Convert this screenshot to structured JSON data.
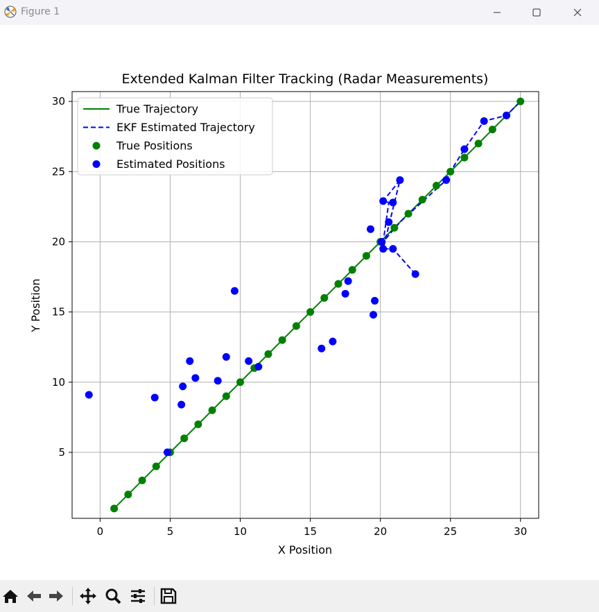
{
  "window": {
    "title": "Figure 1",
    "icons": [
      "matplotlib-logo-icon",
      "minimize-icon",
      "maximize-icon",
      "close-icon"
    ]
  },
  "toolbar": {
    "buttons": [
      "home-icon",
      "back-icon",
      "forward-icon",
      "pan-icon",
      "zoom-icon",
      "configure-subplots-icon",
      "save-icon"
    ]
  },
  "chart_data": {
    "type": "line",
    "title": "Extended Kalman Filter Tracking (Radar Measurements)",
    "xlabel": "X Position",
    "ylabel": "Y Position",
    "xlim": [
      -2,
      31.3
    ],
    "ylim": [
      0.3,
      30.7
    ],
    "xticks": [
      0,
      5,
      10,
      15,
      20,
      25,
      30
    ],
    "yticks": [
      5,
      10,
      15,
      20,
      25,
      30
    ],
    "grid": true,
    "legend_position": "upper-left",
    "colors": {
      "true": "#008000",
      "estimated": "#0000ff"
    },
    "series": [
      {
        "name": "True Trajectory",
        "style": "solid-line",
        "color": "#008000",
        "x": [
          1,
          2,
          3,
          4,
          5,
          6,
          7,
          8,
          9,
          10,
          11,
          12,
          13,
          14,
          15,
          16,
          17,
          18,
          19,
          20,
          21,
          22,
          23,
          24,
          25,
          26,
          27,
          28,
          29,
          30
        ],
        "y": [
          1,
          2,
          3,
          4,
          5,
          6,
          7,
          8,
          9,
          10,
          11,
          12,
          13,
          14,
          15,
          16,
          17,
          18,
          19,
          20,
          21,
          22,
          23,
          24,
          25,
          26,
          27,
          28,
          29,
          30
        ]
      },
      {
        "name": "EKF Estimated Trajectory",
        "style": "dashed-line",
        "color": "#0000ff",
        "x": [
          22.5,
          20.9,
          20.2,
          21.4,
          20.2,
          20.6,
          20.2,
          21.4,
          24.7,
          25,
          26,
          27.4,
          29,
          30
        ],
        "y": [
          17.7,
          19.5,
          19.5,
          24.4,
          22.9,
          22.8,
          20,
          21.4,
          24.4,
          25,
          26.6,
          28.6,
          29,
          30
        ]
      },
      {
        "name": "True Positions",
        "style": "markers",
        "color": "#008000",
        "x": [
          1,
          2,
          3,
          4,
          5,
          6,
          7,
          8,
          9,
          10,
          11,
          12,
          13,
          14,
          15,
          16,
          17,
          18,
          19,
          20,
          21,
          22,
          23,
          24,
          25,
          26,
          27,
          28,
          29,
          30
        ],
        "y": [
          1,
          2,
          3,
          4,
          5,
          6,
          7,
          8,
          9,
          10,
          11,
          12,
          13,
          14,
          15,
          16,
          17,
          18,
          19,
          20,
          21,
          22,
          23,
          24,
          25,
          26,
          27,
          28,
          29,
          30
        ]
      },
      {
        "name": "Estimated Positions",
        "style": "markers",
        "color": "#0000ff",
        "x": [
          -0.8,
          4.8,
          3.9,
          5.9,
          5.8,
          6.4,
          6.8,
          9.6,
          8.4,
          9,
          10.6,
          11.3,
          15.8,
          16.6,
          17.5,
          17.7,
          19.5,
          19.6,
          19.3,
          20.1,
          20.6,
          20.2,
          20.9,
          21.4,
          20.9,
          20.2,
          22.5,
          24.7,
          26,
          27.4,
          29
        ],
        "y": [
          9.1,
          5,
          8.9,
          9.7,
          8.4,
          11.5,
          10.3,
          16.5,
          10.1,
          11.8,
          11.5,
          11.1,
          12.4,
          12.9,
          16.3,
          17.2,
          14.8,
          15.8,
          20.9,
          20,
          21.4,
          22.9,
          22.8,
          24.4,
          19.5,
          19.5,
          17.7,
          24.4,
          26.6,
          28.6,
          29
        ]
      }
    ]
  }
}
